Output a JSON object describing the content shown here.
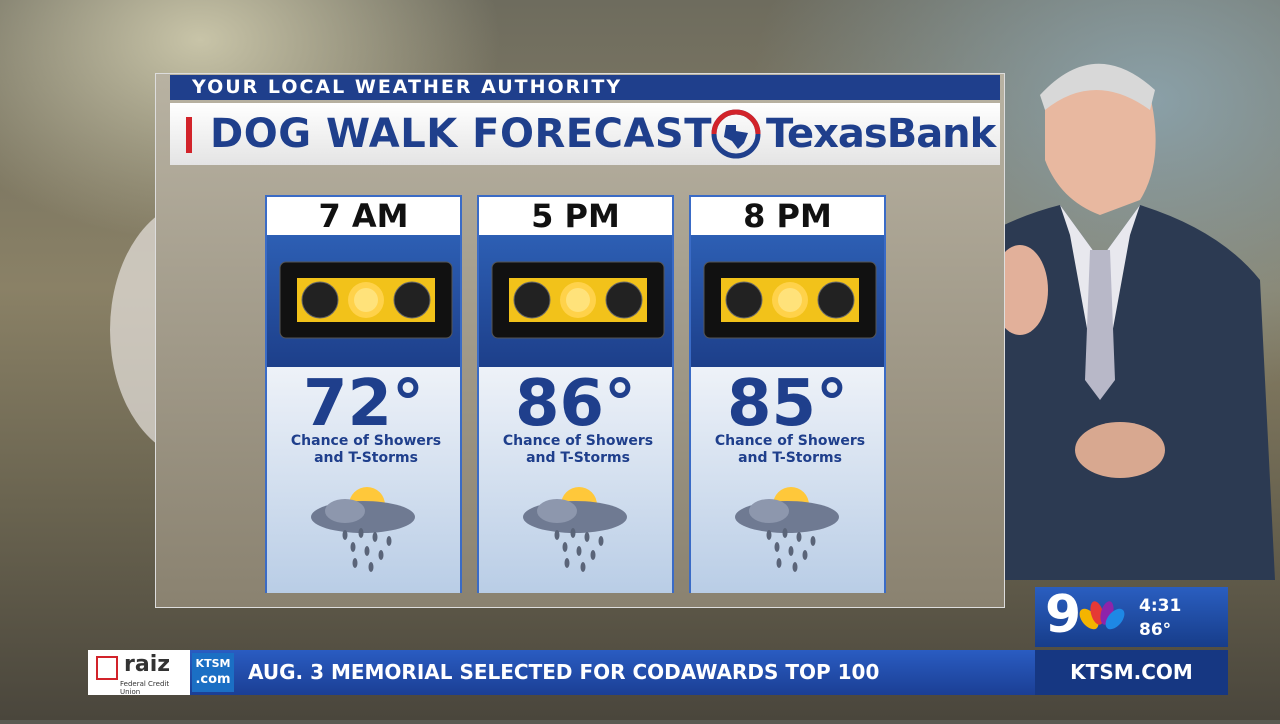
{
  "header": {
    "tagline": "YOUR LOCAL WEATHER AUTHORITY",
    "title": "DOG WALK FORECAST",
    "sponsor": "TexasBank"
  },
  "panels": [
    {
      "time": "7 AM",
      "temperature": "72°",
      "condition": "Chance of Showers and T-Storms"
    },
    {
      "time": "5 PM",
      "temperature": "86°",
      "condition": "Chance of Showers and T-Storms"
    },
    {
      "time": "8 PM",
      "temperature": "85°",
      "condition": "Chance of Showers and T-Storms"
    }
  ],
  "bug": {
    "channel": "9",
    "time": "4:31",
    "temperature": "86°"
  },
  "ticker": {
    "sponsor": "raiz",
    "sponsor_sub": "Federal Credit Union",
    "station": "KTSM",
    "station_sub": ".com",
    "headline": "AUG. 3 MEMORIAL SELECTED FOR CODAWARDS TOP 100",
    "website": "KTSM.COM"
  }
}
